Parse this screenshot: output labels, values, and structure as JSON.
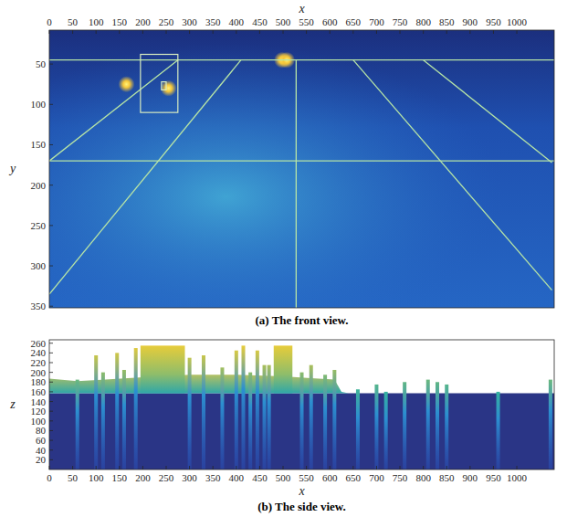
{
  "chart_data": [
    {
      "type": "image",
      "caption": "(a) The front view.",
      "x_label": "x",
      "y_label": "y",
      "xlim": [
        0,
        1080
      ],
      "ylim": [
        352,
        8
      ],
      "xticks": [
        0,
        50,
        100,
        150,
        200,
        250,
        300,
        350,
        400,
        450,
        500,
        550,
        600,
        650,
        700,
        750,
        800,
        850,
        900,
        950,
        1000
      ],
      "yticks": [
        50,
        100,
        150,
        200,
        250,
        300,
        350
      ],
      "lights": {
        "x": [
          165,
          255,
          498,
          508
        ],
        "y": [
          75,
          80,
          45,
          45
        ]
      },
      "lines": [
        {
          "x": [
            0,
            1080
          ],
          "y": [
            45,
            45
          ]
        },
        {
          "x": [
            0,
            1080
          ],
          "y": [
            170,
            170
          ]
        },
        {
          "x": [
            528,
            528
          ],
          "y": [
            45,
            352
          ]
        },
        {
          "x": [
            410,
            0
          ],
          "y": [
            45,
            335
          ]
        },
        {
          "x": [
            275,
            0
          ],
          "y": [
            45,
            170
          ]
        },
        {
          "x": [
            650,
            1075
          ],
          "y": [
            45,
            330
          ]
        },
        {
          "x": [
            800,
            1075
          ],
          "y": [
            45,
            172
          ]
        }
      ],
      "boxes": [
        {
          "x": [
            195,
            275
          ],
          "y": [
            38,
            110
          ]
        },
        {
          "x": [
            240,
            250
          ],
          "y": [
            72,
            82
          ]
        }
      ]
    },
    {
      "type": "image",
      "caption": "(b) The side view.",
      "x_label": "x",
      "y_label": "z",
      "xlim": [
        0,
        1080
      ],
      "ylim": [
        0,
        267
      ],
      "xticks": [
        0,
        50,
        100,
        150,
        200,
        250,
        300,
        350,
        400,
        450,
        500,
        550,
        600,
        650,
        700,
        750,
        800,
        850,
        900,
        950,
        1000
      ],
      "yticks": [
        20,
        40,
        60,
        80,
        100,
        120,
        140,
        160,
        180,
        200,
        220,
        240,
        260
      ],
      "ground": 157,
      "surface": {
        "x": [
          0,
          60,
          120,
          200,
          300,
          400,
          500,
          560,
          610,
          625,
          640,
          700,
          800,
          900,
          1000,
          1075
        ],
        "z": [
          187,
          182,
          185,
          190,
          195,
          195,
          192,
          188,
          185,
          160,
          157,
          157,
          157,
          157,
          157,
          157
        ]
      },
      "blocks": {
        "x0": [
          195,
          480
        ],
        "x1": [
          290,
          520
        ],
        "z": [
          255,
          255
        ]
      },
      "spikes": {
        "x": [
          60,
          100,
          115,
          145,
          160,
          185,
          300,
          330,
          370,
          400,
          415,
          430,
          445,
          460,
          470,
          540,
          560,
          590,
          610,
          660,
          700,
          720,
          760,
          810,
          830,
          850,
          960,
          1072
        ],
        "z": [
          185,
          235,
          200,
          240,
          205,
          250,
          230,
          235,
          210,
          245,
          255,
          200,
          245,
          215,
          215,
          200,
          215,
          195,
          205,
          165,
          175,
          160,
          180,
          185,
          180,
          175,
          160,
          185
        ]
      }
    }
  ]
}
